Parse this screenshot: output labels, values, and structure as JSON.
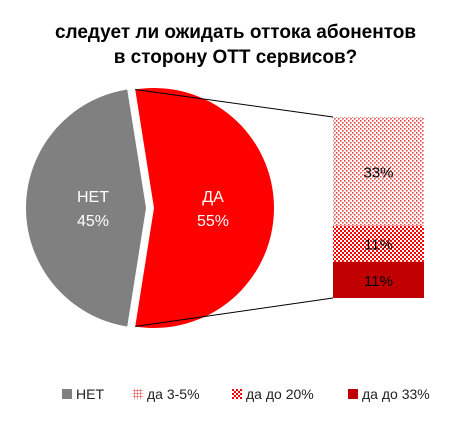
{
  "title_line1": "следует ли ожидать оттока абонентов",
  "title_line2": "в сторону ОТТ сервисов?",
  "chart_data": {
    "type": "pie",
    "title": "следует ли ожидать оттока абонентов в сторону ОТТ сервисов?",
    "slices": [
      {
        "label": "НЕТ",
        "value": 45,
        "value_label": "45%",
        "color": "#808080"
      },
      {
        "label": "ДА",
        "value": 55,
        "value_label": "55%",
        "color": "#ff0000"
      }
    ],
    "breakdown_of": "ДА",
    "breakdown": [
      {
        "label": "да 3-5%",
        "value": 33,
        "value_label": "33%",
        "color": "#f07a7a",
        "pattern": "light-dots"
      },
      {
        "label": "да до 20%",
        "value": 11,
        "value_label": "11%",
        "color": "#ff1a1a",
        "pattern": "checker"
      },
      {
        "label": "да до 33%",
        "value": 11,
        "value_label": "11%",
        "color": "#c00000",
        "pattern": "solid"
      }
    ],
    "legend": [
      {
        "label": "НЕТ",
        "color": "#808080"
      },
      {
        "label": "да 3-5%",
        "color": "#f07a7a"
      },
      {
        "label": "да до 20%",
        "color": "#ff1a1a"
      },
      {
        "label": "да до 33%",
        "color": "#c00000"
      }
    ],
    "legend_position": "bottom"
  }
}
